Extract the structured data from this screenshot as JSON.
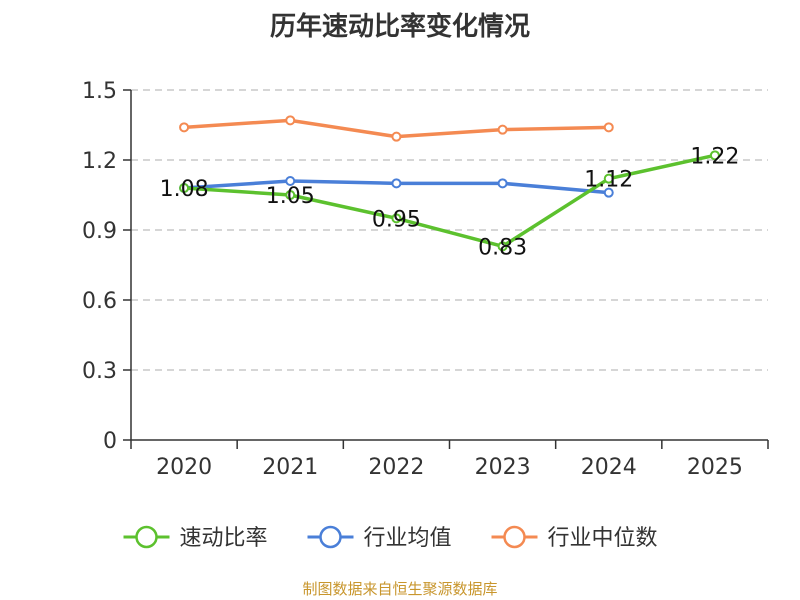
{
  "chart_data": {
    "type": "line",
    "title": "历年速动比率变化情况",
    "xlabel": "",
    "ylabel": "",
    "categories": [
      "2020",
      "2021",
      "2022",
      "2023",
      "2024",
      "2025"
    ],
    "ylim": [
      0,
      1.5
    ],
    "yticks": [
      0,
      0.3,
      0.6,
      0.9,
      1.2,
      1.5
    ],
    "ytick_labels": [
      "0",
      "0.3",
      "0.6",
      "0.9",
      "1.2",
      "1.5"
    ],
    "grid": "horizontal-dashed",
    "legend_position": "bottom",
    "series": [
      {
        "name": "速动比率",
        "color": "#5cc12e",
        "values": [
          1.08,
          1.05,
          0.95,
          0.83,
          1.12,
          1.22
        ],
        "labels": [
          "1.08",
          "1.05",
          "0.95",
          "0.83",
          "1.12",
          "1.22"
        ],
        "show_labels": true
      },
      {
        "name": "行业均值",
        "color": "#4a7fd8",
        "values": [
          1.08,
          1.11,
          1.1,
          1.1,
          1.06,
          null
        ],
        "show_labels": false
      },
      {
        "name": "行业中位数",
        "color": "#f48a52",
        "values": [
          1.34,
          1.37,
          1.3,
          1.33,
          1.34,
          null
        ],
        "show_labels": false
      }
    ]
  },
  "source_note": "制图数据来自恒生聚源数据库"
}
